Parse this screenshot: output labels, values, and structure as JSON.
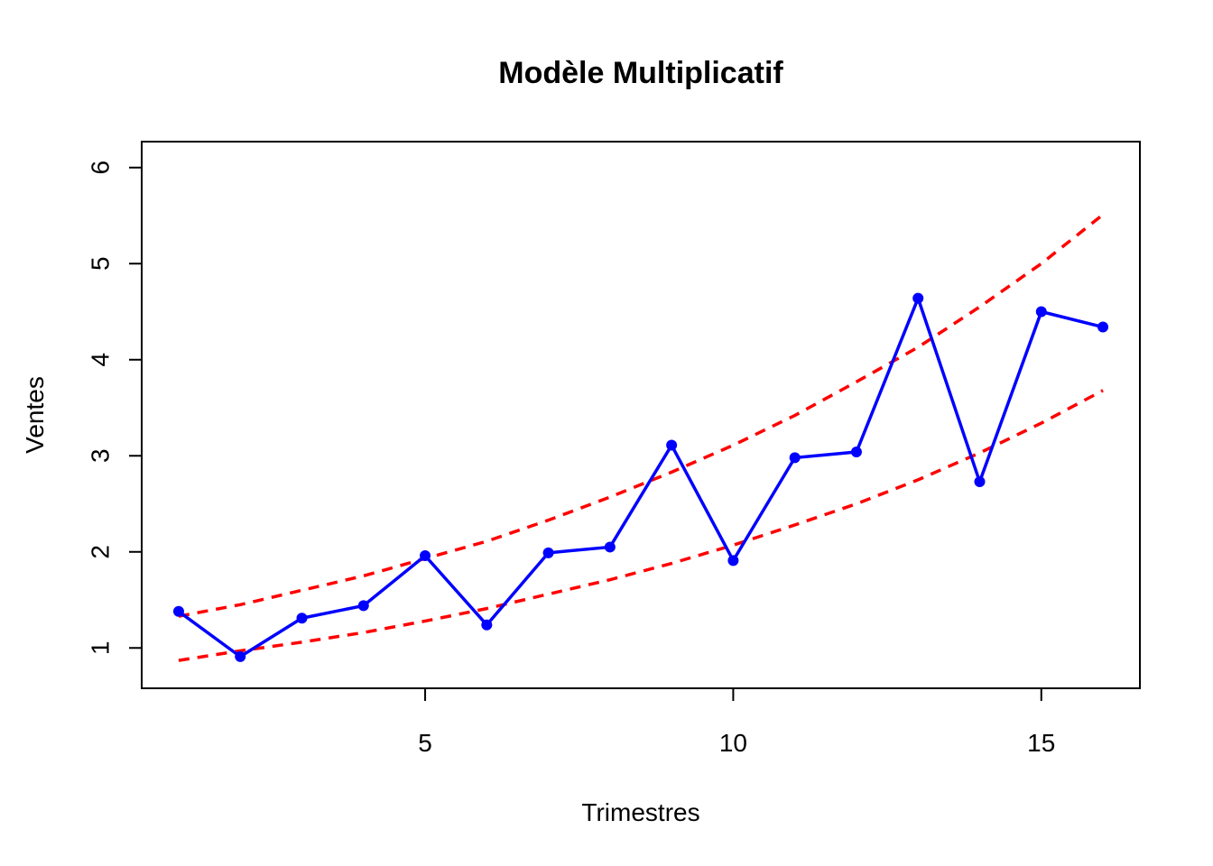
{
  "chart_data": {
    "type": "line",
    "title": "Modèle Multiplicatif",
    "xlabel": "Trimestres",
    "ylabel": "Ventes",
    "xlim": [
      0.4,
      16.6
    ],
    "ylim": [
      0.58,
      6.27
    ],
    "x_ticks": [
      5,
      10,
      15
    ],
    "x_tick_labels": [
      "5",
      "10",
      "15"
    ],
    "y_ticks": [
      1,
      2,
      3,
      4,
      5,
      6
    ],
    "y_tick_labels": [
      "1",
      "2",
      "3",
      "4",
      "5",
      "6"
    ],
    "grid": false,
    "legend": false,
    "x": [
      1,
      2,
      3,
      4,
      5,
      6,
      7,
      8,
      9,
      10,
      11,
      12,
      13,
      14,
      15,
      16
    ],
    "series": [
      {
        "style": "solid",
        "markers": true,
        "color": "#0000ff",
        "values": [
          1.38,
          0.91,
          1.31,
          1.44,
          1.96,
          1.24,
          1.99,
          2.05,
          3.11,
          1.91,
          2.98,
          3.04,
          4.64,
          2.73,
          4.5,
          4.34
        ]
      },
      {
        "style": "dashed",
        "markers": false,
        "color": "#ff0000",
        "values": [
          1.33,
          1.45,
          1.6,
          1.75,
          1.93,
          2.11,
          2.33,
          2.57,
          2.83,
          3.11,
          3.42,
          3.77,
          4.13,
          4.55,
          5.0,
          5.51
        ]
      },
      {
        "style": "dashed",
        "markers": false,
        "color": "#ff0000",
        "values": [
          0.87,
          0.97,
          1.06,
          1.16,
          1.28,
          1.41,
          1.56,
          1.71,
          1.88,
          2.07,
          2.28,
          2.5,
          2.75,
          3.03,
          3.34,
          3.68
        ]
      }
    ]
  }
}
